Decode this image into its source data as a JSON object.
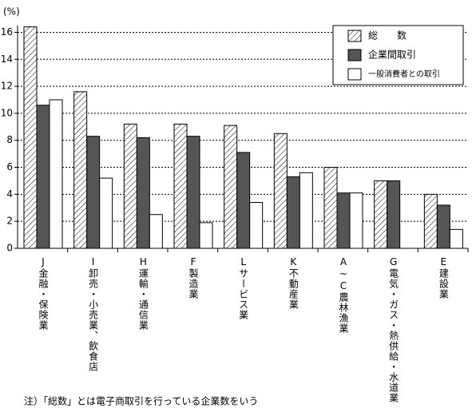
{
  "chart_data": {
    "type": "bar",
    "y_label": "(%)",
    "categories": [
      "J金融・保険業",
      "I卸売・小売業、飲食店",
      "H運輸・通信業",
      "F製造業",
      "Lサービス業",
      "K不動産業",
      "A~C農林漁業",
      "G電気・ガス・熱供給・水道業",
      "E建設業"
    ],
    "series": [
      {
        "name": "総　　数",
        "color": "#ffffff",
        "pattern": "hatch",
        "values": [
          16.4,
          11.6,
          9.2,
          9.2,
          9.1,
          8.5,
          6.0,
          5.0,
          4.0
        ]
      },
      {
        "name": "企業間取引",
        "color": "#555555",
        "values": [
          10.6,
          8.3,
          8.2,
          8.3,
          7.1,
          5.3,
          4.1,
          5.0,
          3.2
        ]
      },
      {
        "name": "一般消費者との取引",
        "color": "#ffffff",
        "values": [
          11.0,
          5.2,
          2.5,
          1.9,
          3.4,
          5.6,
          4.1,
          null,
          1.4
        ]
      }
    ],
    "ylim": [
      0,
      16.5
    ],
    "yticks": [
      0,
      2,
      4,
      6,
      8,
      10,
      12,
      14,
      16
    ],
    "grid": true,
    "legend": "top-right",
    "note": "注）「総数」とは電子商取引を行っている企業数をいう"
  }
}
